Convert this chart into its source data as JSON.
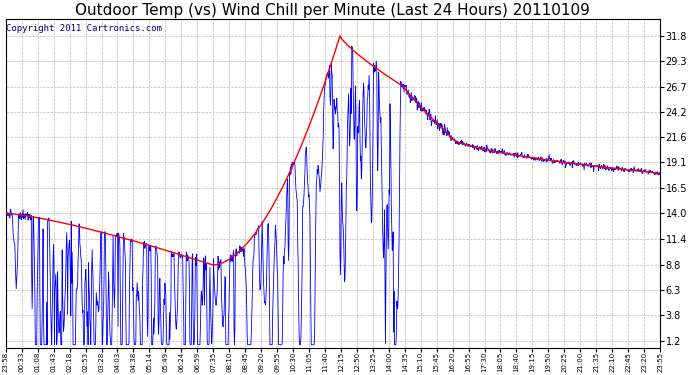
{
  "title": "Outdoor Temp (vs) Wind Chill per Minute (Last 24 Hours) 20110109",
  "copyright_text": "Copyright 2011 Cartronics.com",
  "yticks": [
    1.2,
    3.8,
    6.3,
    8.8,
    11.4,
    14.0,
    16.5,
    19.1,
    21.6,
    24.2,
    26.7,
    29.3,
    31.8
  ],
  "ylim": [
    0.5,
    33.5
  ],
  "x_labels": [
    "23:58",
    "00:33",
    "01:08",
    "01:43",
    "02:18",
    "02:53",
    "03:28",
    "04:03",
    "04:38",
    "05:14",
    "05:49",
    "06:24",
    "06:59",
    "07:35",
    "08:10",
    "08:45",
    "09:20",
    "09:55",
    "10:30",
    "11:05",
    "11:40",
    "12:15",
    "12:50",
    "13:25",
    "14:00",
    "14:35",
    "15:10",
    "15:45",
    "16:20",
    "16:55",
    "17:30",
    "18:05",
    "18:40",
    "19:15",
    "19:50",
    "20:25",
    "21:00",
    "21:35",
    "22:10",
    "22:45",
    "23:20",
    "23:55"
  ],
  "bg_color": "#ffffff",
  "grid_color": "#bbbbbb",
  "temp_color": "#ff0000",
  "wind_color": "#0000ff",
  "title_color": "#000000",
  "title_fontsize": 11,
  "copyright_fontsize": 6.5,
  "figwidth": 6.9,
  "figheight": 3.75,
  "dpi": 100
}
